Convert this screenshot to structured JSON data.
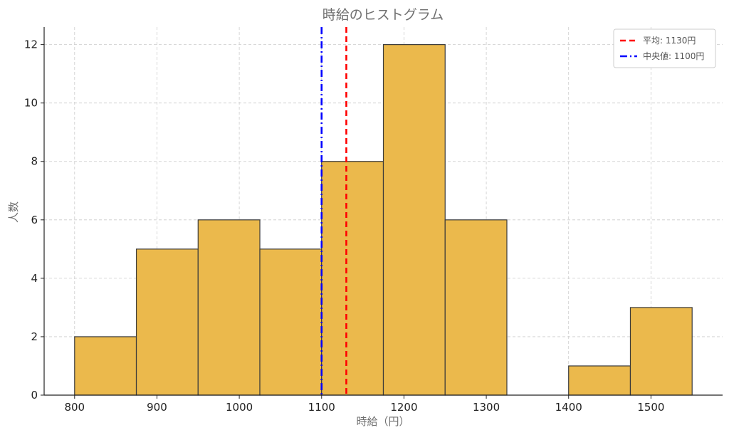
{
  "chart_data": {
    "type": "histogram",
    "title": "時給のヒストグラム",
    "xlabel": "時給（円）",
    "ylabel": "人数",
    "xlim": [
      763,
      1587
    ],
    "ylim": [
      0,
      12.6
    ],
    "bins": [
      {
        "start": 800,
        "end": 875,
        "count": 2
      },
      {
        "start": 875,
        "end": 950,
        "count": 5
      },
      {
        "start": 950,
        "end": 1025,
        "count": 6
      },
      {
        "start": 1025,
        "end": 1100,
        "count": 5
      },
      {
        "start": 1100,
        "end": 1175,
        "count": 8
      },
      {
        "start": 1175,
        "end": 1250,
        "count": 12
      },
      {
        "start": 1250,
        "end": 1325,
        "count": 6
      },
      {
        "start": 1325,
        "end": 1400,
        "count": 0
      },
      {
        "start": 1400,
        "end": 1475,
        "count": 1
      },
      {
        "start": 1475,
        "end": 1550,
        "count": 3
      }
    ],
    "xticks": [
      800,
      900,
      1000,
      1100,
      1200,
      1300,
      1400,
      1500
    ],
    "yticks": [
      0,
      2,
      4,
      6,
      8,
      10,
      12
    ],
    "bar_color": "#ebb94c",
    "bar_edge_color": "#3a3a3a",
    "grid": true,
    "legend_position": "top-right",
    "reference_lines": [
      {
        "label": "平均: 1130円",
        "value": 1130,
        "color": "#ff0000",
        "style": "dashed"
      },
      {
        "label": "中央値: 1100円",
        "value": 1100,
        "color": "#0000ff",
        "style": "dash-dot"
      }
    ]
  }
}
